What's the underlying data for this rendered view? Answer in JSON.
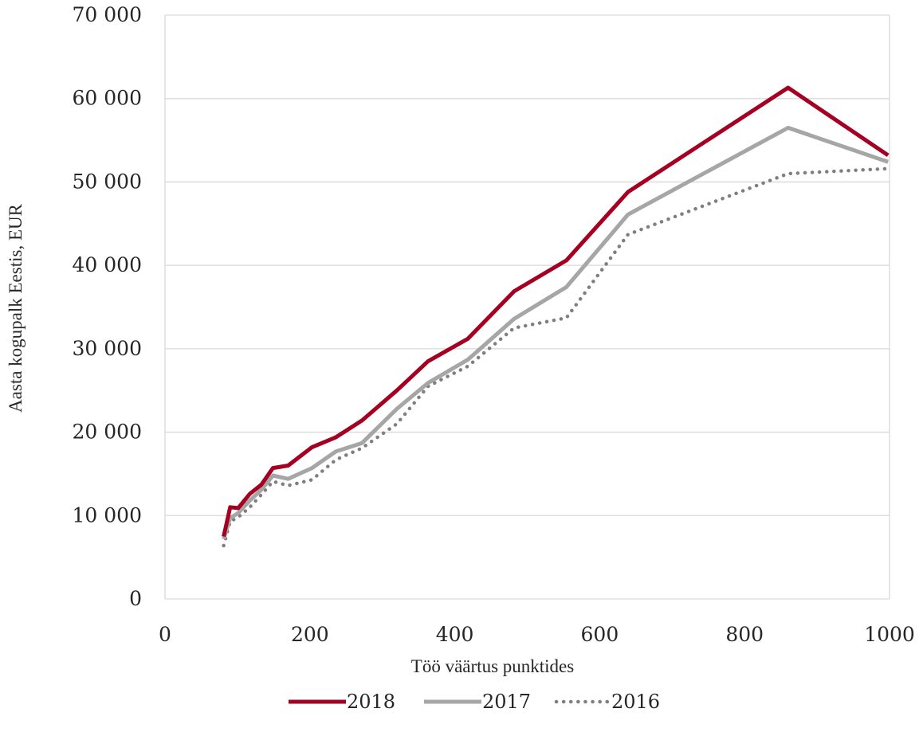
{
  "chart_data": {
    "type": "line",
    "xlabel": "Töö väärtus punktides",
    "ylabel": "Aasta kogupalk Eestis, EUR",
    "xlim": [
      0,
      1000
    ],
    "ylim": [
      0,
      70000
    ],
    "x_ticks": [
      0,
      200,
      400,
      600,
      800,
      1000
    ],
    "x_tick_labels": [
      "0",
      "200",
      "400",
      "600",
      "800",
      "1000"
    ],
    "y_ticks": [
      0,
      10000,
      20000,
      30000,
      40000,
      50000,
      60000,
      70000
    ],
    "y_tick_labels": [
      "0",
      "10 000",
      "20 000",
      "30 000",
      "40 000",
      "50 000",
      "60 000",
      "70 000"
    ],
    "grid": "horizontal",
    "legend": "bottom",
    "series": [
      {
        "name": "2018",
        "color": "#a50021",
        "style": "solid",
        "points": [
          [
            81,
            7500
          ],
          [
            90,
            11000
          ],
          [
            101,
            10900
          ],
          [
            117,
            12600
          ],
          [
            133,
            13700
          ],
          [
            149,
            15700
          ],
          [
            170,
            16000
          ],
          [
            203,
            18200
          ],
          [
            236,
            19400
          ],
          [
            272,
            21400
          ],
          [
            320,
            25000
          ],
          [
            363,
            28500
          ],
          [
            418,
            31200
          ],
          [
            482,
            36900
          ],
          [
            554,
            40600
          ],
          [
            639,
            48800
          ],
          [
            860,
            61300
          ],
          [
            998,
            53200
          ]
        ]
      },
      {
        "name": "2017",
        "color": "#a6a6a6",
        "style": "solid",
        "points": [
          [
            81,
            7200
          ],
          [
            90,
            9700
          ],
          [
            101,
            10300
          ],
          [
            117,
            11800
          ],
          [
            133,
            13100
          ],
          [
            149,
            14800
          ],
          [
            170,
            14400
          ],
          [
            203,
            15700
          ],
          [
            236,
            17700
          ],
          [
            272,
            18700
          ],
          [
            320,
            22800
          ],
          [
            363,
            25900
          ],
          [
            418,
            28700
          ],
          [
            482,
            33600
          ],
          [
            554,
            37400
          ],
          [
            639,
            46100
          ],
          [
            860,
            56500
          ],
          [
            998,
            52400
          ]
        ]
      },
      {
        "name": "2016",
        "color": "#7f7f7f",
        "style": "dotted",
        "points": [
          [
            81,
            6400
          ],
          [
            90,
            9300
          ],
          [
            101,
            9800
          ],
          [
            117,
            11000
          ],
          [
            133,
            12500
          ],
          [
            149,
            14100
          ],
          [
            170,
            13600
          ],
          [
            203,
            14300
          ],
          [
            236,
            16700
          ],
          [
            272,
            18100
          ],
          [
            320,
            21000
          ],
          [
            363,
            25500
          ],
          [
            418,
            27900
          ],
          [
            482,
            32500
          ],
          [
            554,
            33700
          ],
          [
            639,
            43700
          ],
          [
            860,
            51000
          ],
          [
            998,
            51600
          ]
        ]
      }
    ]
  }
}
